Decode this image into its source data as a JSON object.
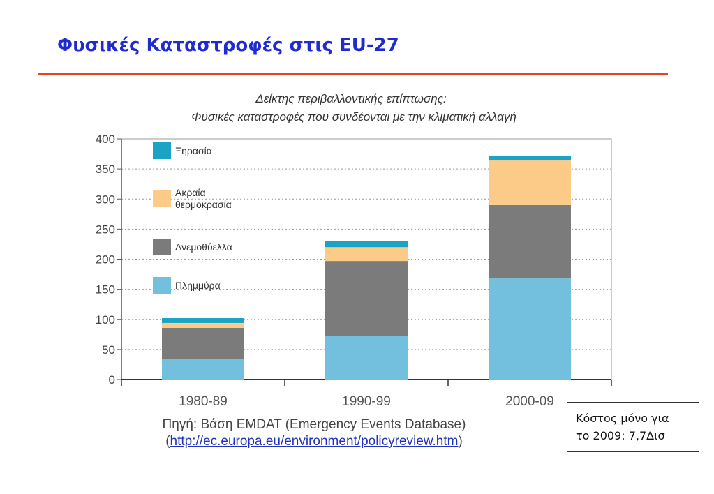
{
  "slide": {
    "title": "Φυσικές Καταστροφές στις EU-27",
    "source_label": "Πηγή: Βάση EMDAT (Emergency Events Database)",
    "source_url_open": "(",
    "source_url": "http://ec.europa.eu/environment/policyreview.htm",
    "source_url_close": ")",
    "note_line1": "Κόστος μόνο για",
    "note_line2": "το 2009: 7,7Δισ"
  },
  "chart_data": {
    "type": "bar",
    "stacked": true,
    "title": "Δείκτης περιβαλλοντικής επίπτωσης:",
    "subtitle": "Φυσικές καταστροφές που συνδέονται με την κλιματική αλλαγή",
    "categories": [
      "1980-89",
      "1990-99",
      "2000-09"
    ],
    "series": [
      {
        "name": "Πλημμύρα",
        "color": "#72c0dd",
        "values": [
          34,
          72,
          168
        ]
      },
      {
        "name": "Ανεμοθύελλα",
        "color": "#7b7b7b",
        "values": [
          52,
          125,
          122
        ]
      },
      {
        "name": "Ακραία θερμοκρασία",
        "color": "#fbcb87",
        "values": [
          8,
          23,
          74
        ]
      },
      {
        "name": "Ξηρασία",
        "color": "#1aa3c4",
        "values": [
          8,
          10,
          8
        ]
      }
    ],
    "ylim": [
      0,
      400
    ],
    "yticks": [
      0,
      50,
      100,
      150,
      200,
      250,
      300,
      350,
      400
    ],
    "grid": true,
    "legend_position": "top-left inside"
  }
}
